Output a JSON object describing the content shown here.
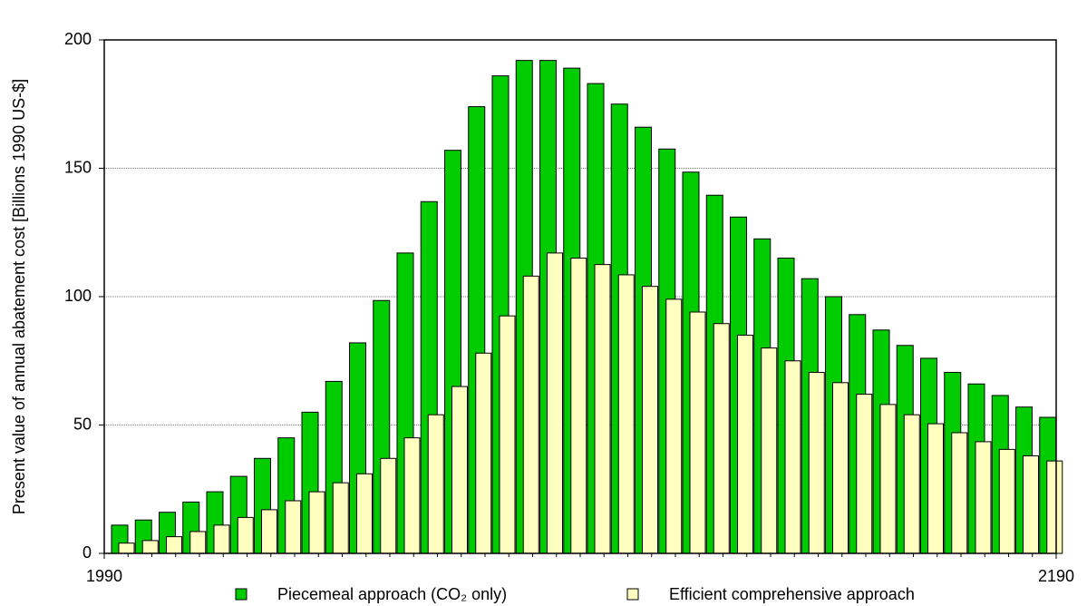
{
  "chart_data": {
    "type": "bar",
    "y_label": "Present value of annual abatement cost [Billions 1990 US-$]",
    "x": [
      1990,
      1995,
      2000,
      2005,
      2010,
      2015,
      2020,
      2025,
      2030,
      2035,
      2040,
      2045,
      2050,
      2055,
      2060,
      2065,
      2070,
      2075,
      2080,
      2085,
      2090,
      2095,
      2100,
      2105,
      2110,
      2115,
      2120,
      2125,
      2130,
      2135,
      2140,
      2145,
      2150,
      2155,
      2160,
      2165,
      2170,
      2175,
      2180,
      2185
    ],
    "xlim": [
      1990,
      2190
    ],
    "xticks": [
      1990,
      2190
    ],
    "ylim": [
      0,
      200
    ],
    "yticks": [
      0,
      50,
      100,
      150,
      200
    ],
    "grid": true,
    "series": [
      {
        "name": "Piecemeal approach (CO₂ only)",
        "color": "#00cc00",
        "values": [
          11,
          13,
          16,
          20,
          24,
          30,
          37,
          45,
          55,
          67,
          82,
          98.5,
          117,
          137,
          157,
          174,
          186,
          192,
          192,
          189,
          183,
          175,
          166,
          157.5,
          148.5,
          139.5,
          131,
          122.5,
          115,
          107,
          100,
          93,
          87,
          81,
          76,
          70.5,
          66,
          61.5,
          57,
          53
        ]
      },
      {
        "name": "Efficient comprehensive approach",
        "color": "#ffffc0",
        "values": [
          4,
          5,
          6.5,
          8.5,
          11,
          14,
          17,
          20.5,
          24,
          27.5,
          31,
          37,
          45,
          54,
          65,
          78,
          92.5,
          108,
          117,
          115,
          112.5,
          108.5,
          104,
          99,
          94,
          89.5,
          85,
          80,
          75,
          70.5,
          66.5,
          62,
          58,
          54,
          50.5,
          47,
          43.5,
          40.5,
          38,
          36
        ]
      }
    ]
  }
}
